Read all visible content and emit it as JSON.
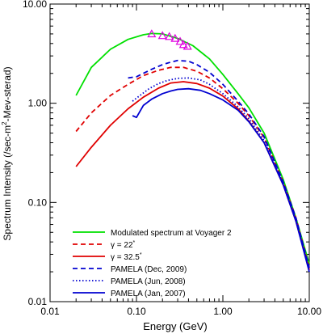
{
  "chart_data": {
    "type": "line",
    "xlabel": "Energy (GeV)",
    "ylabel_parts": [
      "Spectrum Intensity (/sec-m",
      "2",
      "-Mev-sterad)"
    ],
    "xscale": "log",
    "yscale": "log",
    "xlim": [
      0.01,
      10.0
    ],
    "ylim": [
      0.01,
      10.0
    ],
    "x_ticks": [
      {
        "value": 0.01,
        "label": "0.01"
      },
      {
        "value": 0.1,
        "label": "0.10"
      },
      {
        "value": 1.0,
        "label": "1.00"
      },
      {
        "value": 10.0,
        "label": "10.00"
      }
    ],
    "y_ticks": [
      {
        "value": 0.01,
        "label": "0.01"
      },
      {
        "value": 0.1,
        "label": "0.10"
      },
      {
        "value": 1.0,
        "label": "1.00"
      },
      {
        "value": 10.0,
        "label": "10.00"
      }
    ],
    "grid": false,
    "legend_position": "bottom-left",
    "series": [
      {
        "name": "Modulated spectrum at Voyager 2",
        "color": "#00e000",
        "dash": "solid",
        "x": [
          0.02,
          0.03,
          0.05,
          0.08,
          0.12,
          0.15,
          0.2,
          0.3,
          0.45,
          0.7,
          1.0,
          1.5,
          2.0,
          3.0,
          5.0,
          7.0,
          10.0
        ],
        "y": [
          1.2,
          2.3,
          3.5,
          4.4,
          4.9,
          5.05,
          5.0,
          4.5,
          3.8,
          2.8,
          1.95,
          1.25,
          0.9,
          0.5,
          0.17,
          0.07,
          0.024
        ]
      },
      {
        "name": "γ = 22°",
        "label_parts": [
          "γ = 22",
          "*"
        ],
        "color": "#e00000",
        "dash": "dashed",
        "x": [
          0.02,
          0.03,
          0.05,
          0.08,
          0.12,
          0.18,
          0.25,
          0.35,
          0.5,
          0.7,
          1.0,
          1.5,
          2.0,
          3.0,
          5.0,
          7.0,
          10.0
        ],
        "y": [
          0.52,
          0.8,
          1.2,
          1.55,
          1.9,
          2.15,
          2.3,
          2.3,
          2.1,
          1.8,
          1.4,
          1.0,
          0.75,
          0.45,
          0.16,
          0.07,
          0.022
        ]
      },
      {
        "name": "γ = 32.5°",
        "label_parts": [
          "γ = 32.5",
          "*"
        ],
        "color": "#e00000",
        "dash": "solid",
        "x": [
          0.02,
          0.03,
          0.05,
          0.08,
          0.12,
          0.18,
          0.25,
          0.35,
          0.5,
          0.7,
          1.0,
          1.5,
          2.0,
          3.0,
          5.0,
          7.0,
          10.0
        ],
        "y": [
          0.23,
          0.36,
          0.6,
          0.88,
          1.15,
          1.42,
          1.6,
          1.65,
          1.58,
          1.42,
          1.18,
          0.88,
          0.66,
          0.4,
          0.15,
          0.065,
          0.021
        ]
      },
      {
        "name": "PAMELA (Dec, 2009)",
        "color": "#0000d0",
        "dash": "dashed",
        "x": [
          0.08,
          0.1,
          0.12,
          0.15,
          0.2,
          0.25,
          0.3,
          0.4,
          0.5,
          0.7,
          1.0,
          1.5,
          2.0,
          3.0,
          5.0,
          7.0,
          10.0
        ],
        "y": [
          1.8,
          1.85,
          2.0,
          2.2,
          2.45,
          2.6,
          2.7,
          2.65,
          2.45,
          2.05,
          1.55,
          1.05,
          0.78,
          0.46,
          0.16,
          0.07,
          0.022
        ]
      },
      {
        "name": "PAMELA (Jun, 2008)",
        "color": "#0000d0",
        "dash": "dotted",
        "x": [
          0.09,
          0.11,
          0.14,
          0.18,
          0.23,
          0.3,
          0.4,
          0.55,
          0.7,
          1.0,
          1.5,
          2.0,
          3.0,
          5.0,
          7.0,
          10.0
        ],
        "y": [
          1.05,
          1.2,
          1.4,
          1.58,
          1.7,
          1.78,
          1.8,
          1.72,
          1.55,
          1.25,
          0.92,
          0.7,
          0.42,
          0.155,
          0.068,
          0.021
        ]
      },
      {
        "name": "PAMELA (Jan, 2007)",
        "color": "#0000d0",
        "dash": "solid",
        "x": [
          0.09,
          0.1,
          0.12,
          0.15,
          0.2,
          0.25,
          0.3,
          0.4,
          0.55,
          0.7,
          1.0,
          1.5,
          2.0,
          3.0,
          5.0,
          7.0,
          10.0
        ],
        "y": [
          0.75,
          0.72,
          0.95,
          1.1,
          1.25,
          1.33,
          1.38,
          1.4,
          1.35,
          1.25,
          1.08,
          0.85,
          0.65,
          0.4,
          0.15,
          0.065,
          0.02
        ]
      }
    ],
    "markers": {
      "shape": "triangle",
      "color": "#e000e0",
      "x": [
        0.15,
        0.2,
        0.24,
        0.28,
        0.32,
        0.35,
        0.39
      ],
      "y": [
        5.0,
        4.8,
        4.7,
        4.5,
        4.2,
        3.9,
        3.75
      ]
    }
  }
}
